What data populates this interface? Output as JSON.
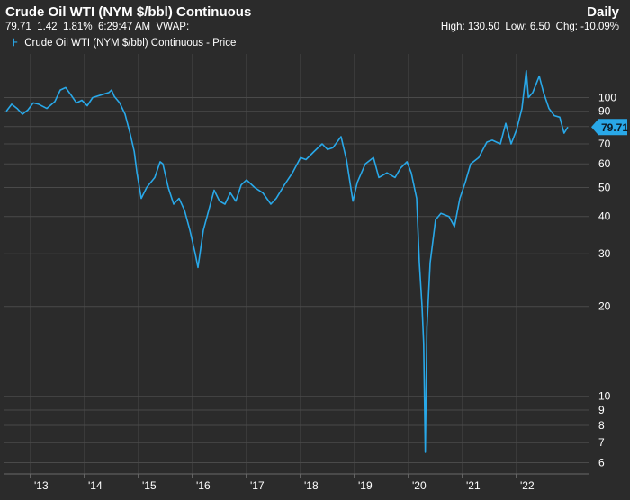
{
  "header": {
    "title": "Crude Oil WTI (NYM $/bbl) Continuous",
    "interval": "Daily",
    "quote_left": "79.71  1.42  1.81%  6:29:47 AM  VWAP:",
    "quote_right": "High: 130.50  Low: 6.50  Chg: -10.09%"
  },
  "legend": {
    "marker": "⊦",
    "label": "Crude Oil WTI (NYM $/bbl) Continuous - Price"
  },
  "colors": {
    "background": "#2b2b2b",
    "grid": "#4a4a4a",
    "line": "#29a8e8",
    "text": "#ffffff"
  },
  "chart_data": {
    "type": "line",
    "scale": "log",
    "grid": true,
    "legend_position": "top-left",
    "ylim": [
      5.5,
      140
    ],
    "yticks": [
      6,
      7,
      8,
      9,
      10,
      20,
      30,
      40,
      50,
      60,
      70,
      80,
      90,
      100
    ],
    "ytick_labels": [
      "6",
      "7",
      "8",
      "9",
      "10",
      "20",
      "30",
      "40",
      "50",
      "60",
      "70",
      "80",
      "90",
      "100"
    ],
    "xticks": [
      2013,
      2014,
      2015,
      2016,
      2017,
      2018,
      2019,
      2020,
      2021,
      2022
    ],
    "xtick_labels": [
      "'13",
      "'14",
      "'15",
      "'16",
      "'17",
      "'18",
      "'19",
      "'20",
      "'21",
      "'22"
    ],
    "last_value_label": "79.71",
    "series": [
      {
        "name": "Crude Oil WTI (NYM $/bbl) Continuous - Price",
        "points": [
          [
            2012.55,
            90
          ],
          [
            2012.65,
            95
          ],
          [
            2012.75,
            92
          ],
          [
            2012.85,
            88
          ],
          [
            2012.95,
            91
          ],
          [
            2013.05,
            96
          ],
          [
            2013.15,
            95
          ],
          [
            2013.3,
            92
          ],
          [
            2013.45,
            97
          ],
          [
            2013.55,
            106
          ],
          [
            2013.65,
            108
          ],
          [
            2013.75,
            102
          ],
          [
            2013.85,
            96
          ],
          [
            2013.95,
            98
          ],
          [
            2014.05,
            94
          ],
          [
            2014.15,
            100
          ],
          [
            2014.3,
            102
          ],
          [
            2014.45,
            104
          ],
          [
            2014.5,
            106
          ],
          [
            2014.55,
            101
          ],
          [
            2014.65,
            96
          ],
          [
            2014.75,
            88
          ],
          [
            2014.85,
            75
          ],
          [
            2014.92,
            66
          ],
          [
            2014.97,
            56
          ],
          [
            2015.05,
            46
          ],
          [
            2015.15,
            50
          ],
          [
            2015.3,
            54
          ],
          [
            2015.4,
            61
          ],
          [
            2015.45,
            60
          ],
          [
            2015.55,
            50
          ],
          [
            2015.65,
            44
          ],
          [
            2015.75,
            46
          ],
          [
            2015.85,
            42
          ],
          [
            2015.95,
            36
          ],
          [
            2016.05,
            30
          ],
          [
            2016.1,
            27
          ],
          [
            2016.2,
            36
          ],
          [
            2016.3,
            42
          ],
          [
            2016.4,
            49
          ],
          [
            2016.5,
            45
          ],
          [
            2016.6,
            44
          ],
          [
            2016.7,
            48
          ],
          [
            2016.8,
            45
          ],
          [
            2016.9,
            51
          ],
          [
            2017.0,
            53
          ],
          [
            2017.15,
            50
          ],
          [
            2017.3,
            48
          ],
          [
            2017.45,
            44
          ],
          [
            2017.55,
            46
          ],
          [
            2017.7,
            51
          ],
          [
            2017.85,
            56
          ],
          [
            2018.0,
            63
          ],
          [
            2018.1,
            62
          ],
          [
            2018.25,
            66
          ],
          [
            2018.4,
            70
          ],
          [
            2018.5,
            67
          ],
          [
            2018.6,
            68
          ],
          [
            2018.75,
            74
          ],
          [
            2018.85,
            62
          ],
          [
            2018.97,
            45
          ],
          [
            2019.05,
            52
          ],
          [
            2019.2,
            60
          ],
          [
            2019.35,
            63
          ],
          [
            2019.45,
            54
          ],
          [
            2019.6,
            56
          ],
          [
            2019.75,
            54
          ],
          [
            2019.85,
            58
          ],
          [
            2019.97,
            61
          ],
          [
            2020.05,
            56
          ],
          [
            2020.15,
            46
          ],
          [
            2020.2,
            28
          ],
          [
            2020.25,
            20
          ],
          [
            2020.28,
            15
          ],
          [
            2020.31,
            6.5
          ],
          [
            2020.34,
            17
          ],
          [
            2020.4,
            28
          ],
          [
            2020.5,
            39
          ],
          [
            2020.6,
            41
          ],
          [
            2020.75,
            40
          ],
          [
            2020.85,
            37
          ],
          [
            2020.95,
            46
          ],
          [
            2021.05,
            52
          ],
          [
            2021.15,
            60
          ],
          [
            2021.3,
            63
          ],
          [
            2021.45,
            71
          ],
          [
            2021.55,
            72
          ],
          [
            2021.7,
            70
          ],
          [
            2021.8,
            82
          ],
          [
            2021.9,
            70
          ],
          [
            2022.0,
            78
          ],
          [
            2022.1,
            92
          ],
          [
            2022.18,
            123
          ],
          [
            2022.22,
            100
          ],
          [
            2022.3,
            104
          ],
          [
            2022.42,
            118
          ],
          [
            2022.5,
            104
          ],
          [
            2022.6,
            92
          ],
          [
            2022.7,
            87
          ],
          [
            2022.8,
            86
          ],
          [
            2022.88,
            76
          ],
          [
            2022.95,
            79.71
          ]
        ]
      }
    ]
  }
}
